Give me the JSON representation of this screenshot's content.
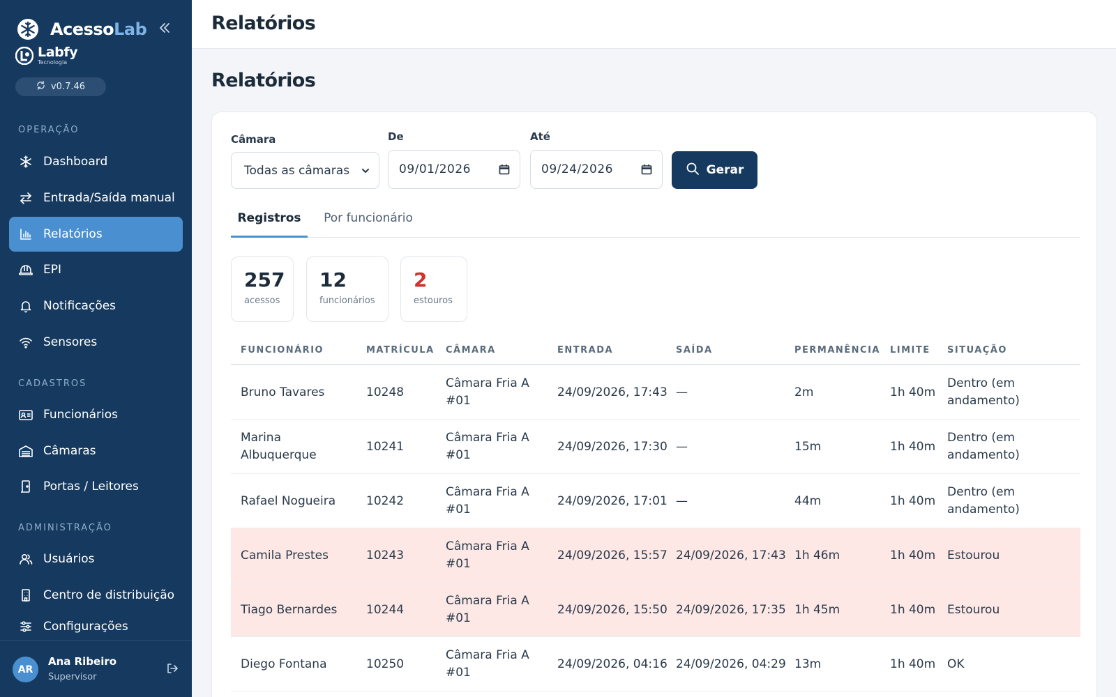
{
  "app": {
    "name_prefix": "Acesso",
    "name_suffix": "Lab",
    "company_name": "Labfy",
    "company_sub": "Tecnologia",
    "version": "v0.7.46"
  },
  "sidebar": {
    "sections": [
      {
        "label": "OPERAÇÃO"
      },
      {
        "label": "CADASTROS"
      },
      {
        "label": "ADMINISTRAÇÃO"
      }
    ],
    "items": [
      {
        "label": "Dashboard",
        "icon": "snowflake-icon"
      },
      {
        "label": "Entrada/Saída manual",
        "icon": "swap-arrows-icon"
      },
      {
        "label": "Relatórios",
        "icon": "bar-chart-icon",
        "active": true
      },
      {
        "label": "EPI",
        "icon": "hard-hat-icon"
      },
      {
        "label": "Notificações",
        "icon": "bell-icon"
      },
      {
        "label": "Sensores",
        "icon": "wifi-signal-icon"
      },
      {
        "label": "Funcionários",
        "icon": "id-card-icon"
      },
      {
        "label": "Câmaras",
        "icon": "warehouse-icon"
      },
      {
        "label": "Portas / Leitores",
        "icon": "door-icon"
      },
      {
        "label": "Usuários",
        "icon": "users-icon"
      },
      {
        "label": "Centro de distribuição",
        "icon": "building-icon"
      },
      {
        "label": "Configurações",
        "icon": "sliders-icon"
      }
    ],
    "user": {
      "initials": "AR",
      "name": "Ana Ribeiro",
      "role": "Supervisor"
    }
  },
  "header": {
    "title": "Relatórios"
  },
  "page": {
    "title": "Relatórios"
  },
  "filters": {
    "camera_label": "Câmara",
    "camera_value": "Todas as câmaras",
    "from_label": "De",
    "from_value": "09/01/2026",
    "to_label": "Até",
    "to_value": "09/24/2026",
    "generate_label": "Gerar"
  },
  "tabs": [
    {
      "label": "Registros",
      "active": true
    },
    {
      "label": "Por funcionário",
      "active": false
    }
  ],
  "stats": [
    {
      "value": "257",
      "label": "acessos"
    },
    {
      "value": "12",
      "label": "funcionários"
    },
    {
      "value": "2",
      "label": "estouros",
      "color": "#d0312d"
    }
  ],
  "table": {
    "columns": [
      "FUNCIONÁRIO",
      "MATRÍCULA",
      "CÂMARA",
      "ENTRADA",
      "SAÍDA",
      "PERMANÊNCIA",
      "LIMITE",
      "SITUAÇÃO"
    ],
    "rows": [
      {
        "funcionario": "Bruno Tavares",
        "matricula": "10248",
        "camara": "Câmara Fria A #01",
        "entrada": "24/09/2026, 17:43",
        "saida": "—",
        "permanencia": "2m",
        "limite": "1h 40m",
        "situacao": "Dentro (em andamento)",
        "alert": false
      },
      {
        "funcionario": "Marina Albuquerque",
        "matricula": "10241",
        "camara": "Câmara Fria A #01",
        "entrada": "24/09/2026, 17:30",
        "saida": "—",
        "permanencia": "15m",
        "limite": "1h 40m",
        "situacao": "Dentro (em andamento)",
        "alert": false
      },
      {
        "funcionario": "Rafael Nogueira",
        "matricula": "10242",
        "camara": "Câmara Fria A #01",
        "entrada": "24/09/2026, 17:01",
        "saida": "—",
        "permanencia": "44m",
        "limite": "1h 40m",
        "situacao": "Dentro (em andamento)",
        "alert": false
      },
      {
        "funcionario": "Camila Prestes",
        "matricula": "10243",
        "camara": "Câmara Fria A #01",
        "entrada": "24/09/2026, 15:57",
        "saida": "24/09/2026, 17:43",
        "permanencia": "1h 46m",
        "limite": "1h 40m",
        "situacao": "Estourou",
        "alert": true
      },
      {
        "funcionario": "Tiago Bernardes",
        "matricula": "10244",
        "camara": "Câmara Fria A #01",
        "entrada": "24/09/2026, 15:50",
        "saida": "24/09/2026, 17:35",
        "permanencia": "1h 45m",
        "limite": "1h 40m",
        "situacao": "Estourou",
        "alert": true
      },
      {
        "funcionario": "Diego Fontana",
        "matricula": "10250",
        "camara": "Câmara Fria A #01",
        "entrada": "24/09/2026, 04:16",
        "saida": "24/09/2026, 04:29",
        "permanencia": "13m",
        "limite": "1h 40m",
        "situacao": "OK",
        "alert": false
      }
    ]
  },
  "colors": {
    "sidebar_bg": "#163a5f",
    "accent": "#4a90d0",
    "alert_row": "#fde8e6",
    "danger": "#d0312d"
  }
}
